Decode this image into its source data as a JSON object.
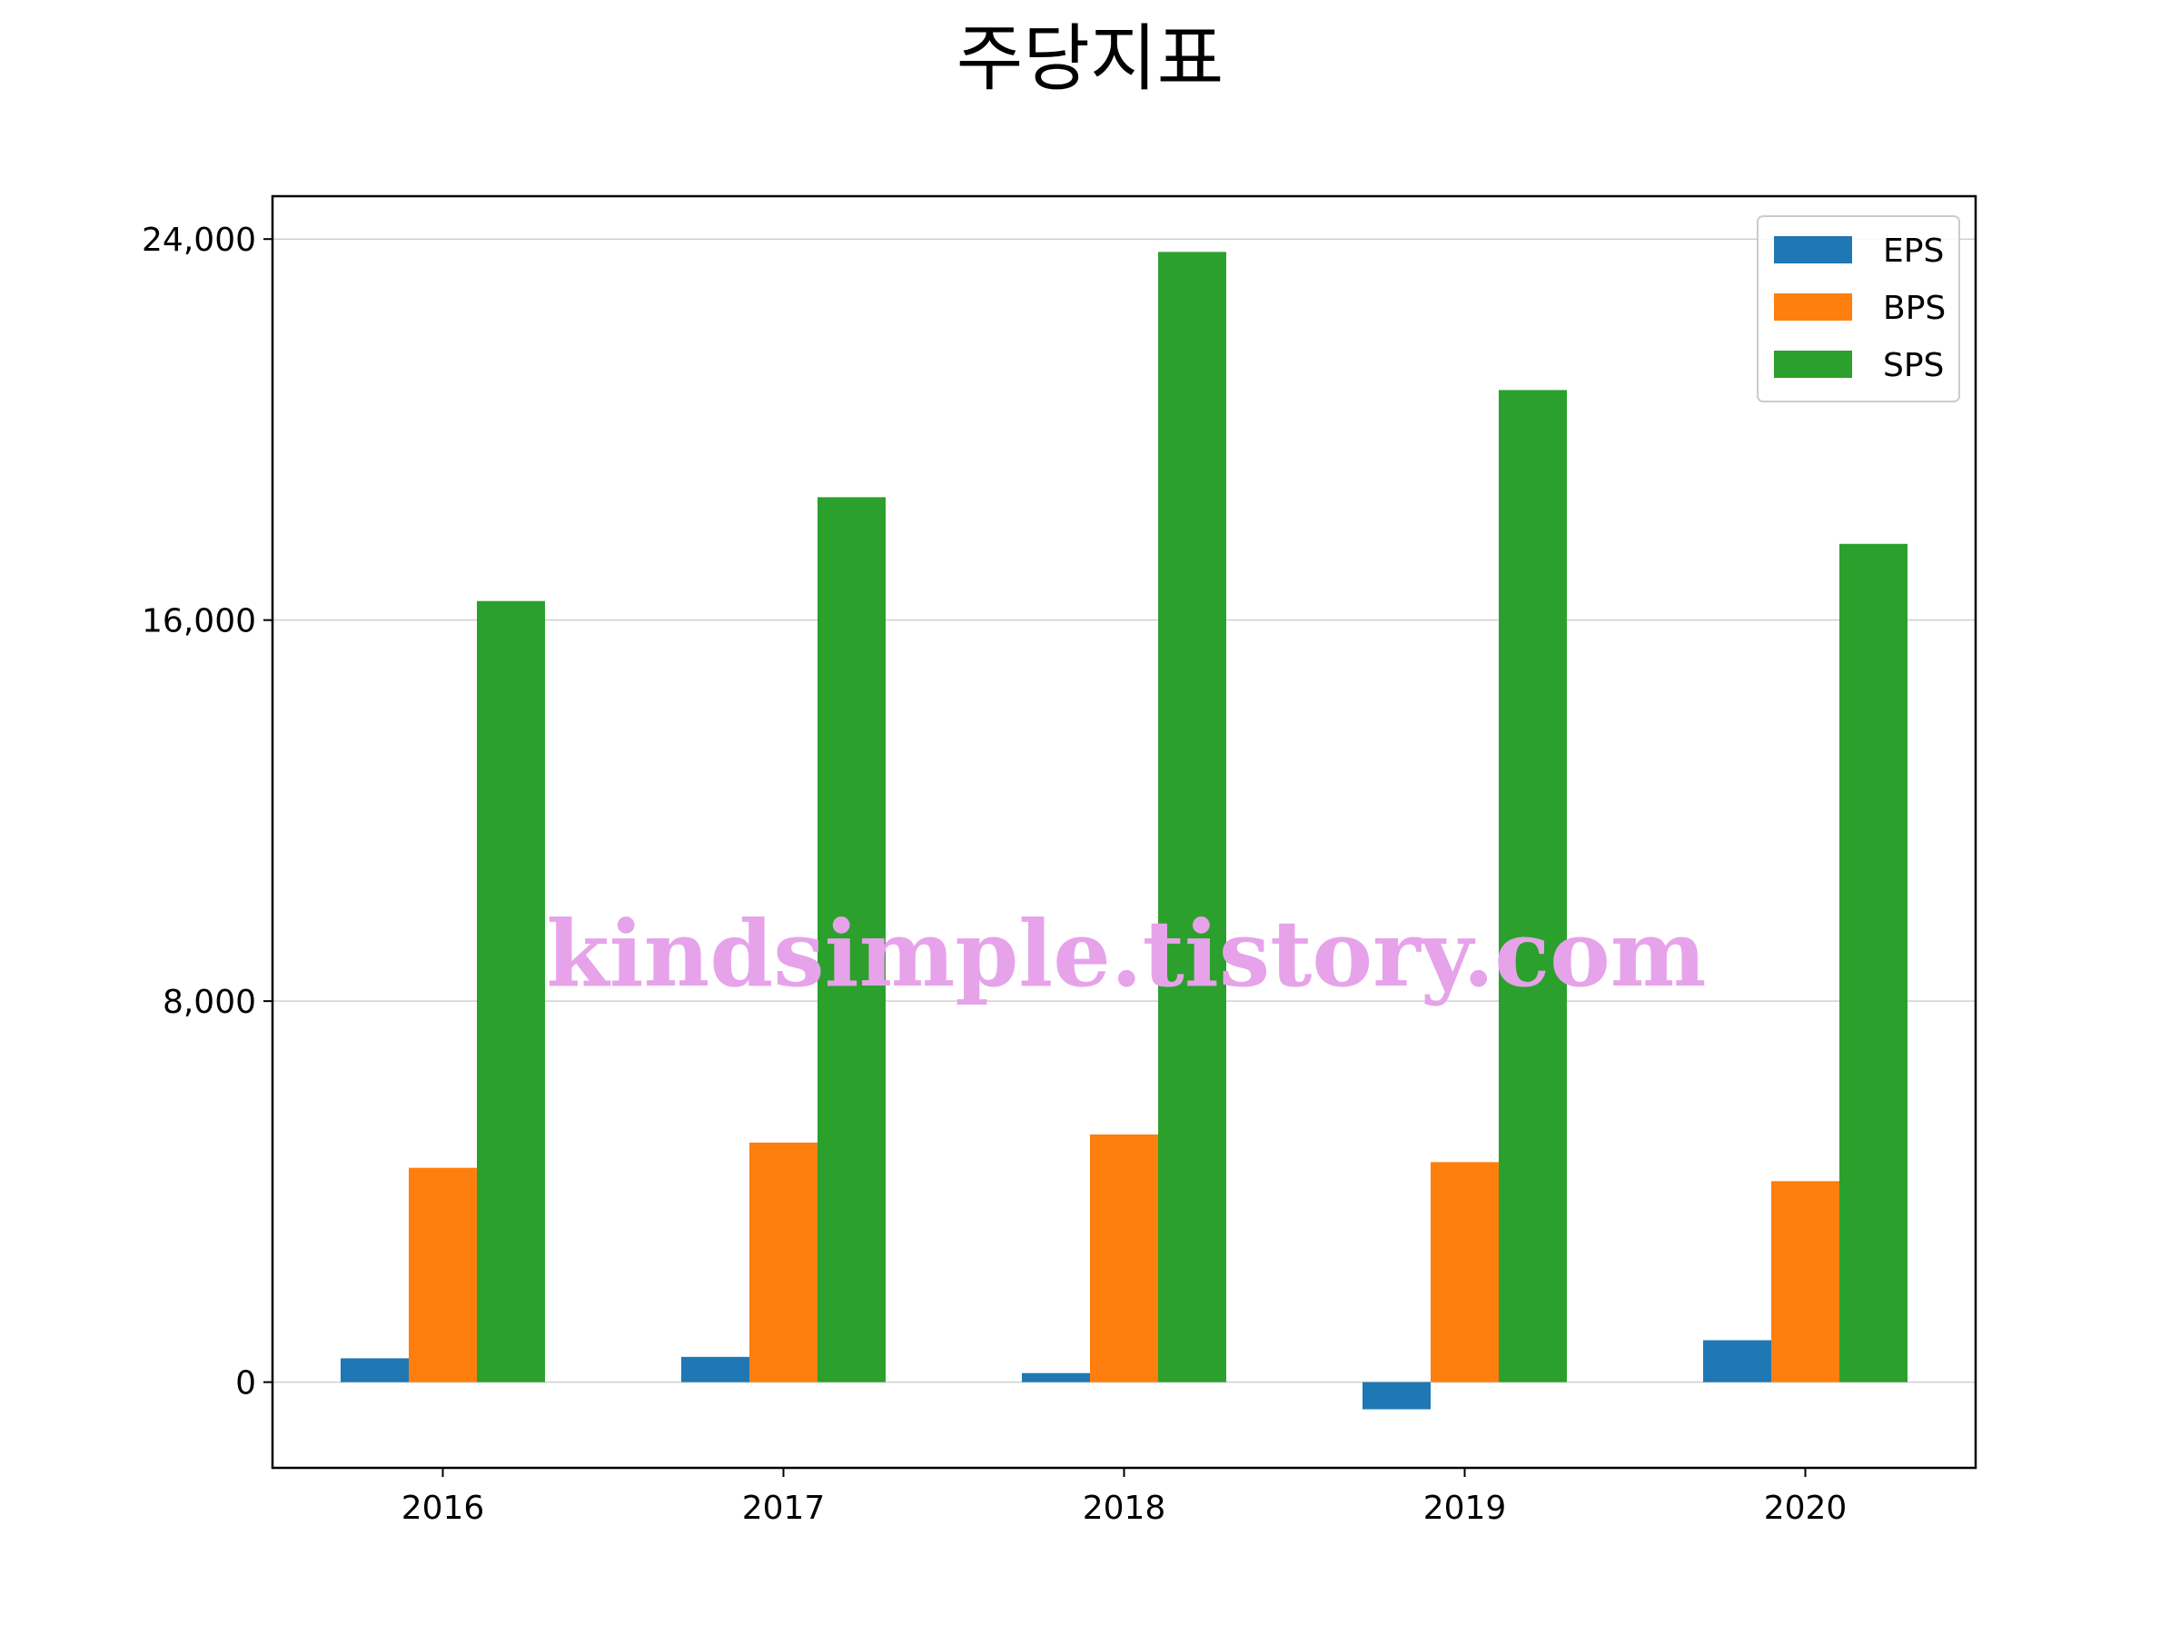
{
  "chart_data": {
    "type": "bar",
    "title": "주당지표",
    "xlabel": "",
    "ylabel": "",
    "categories": [
      "2016",
      "2017",
      "2018",
      "2019",
      "2020"
    ],
    "series": [
      {
        "name": "EPS",
        "color": "#1f77b4",
        "values": [
          500,
          530,
          190,
          -570,
          880
        ]
      },
      {
        "name": "BPS",
        "color": "#ff7f0e",
        "values": [
          4500,
          5030,
          5200,
          4620,
          4220
        ]
      },
      {
        "name": "SPS",
        "color": "#2ca02c",
        "values": [
          16400,
          18580,
          23730,
          20830,
          17600
        ]
      }
    ],
    "ylim": [
      -1800,
      24900
    ],
    "yticks": [
      0,
      8000,
      16000,
      24000
    ],
    "ytick_labels": [
      "0",
      "8,000",
      "16,000",
      "24,000"
    ],
    "grid": "horizontal",
    "legend_position": "top-right"
  },
  "watermark": "kindsimple.tistory.com"
}
